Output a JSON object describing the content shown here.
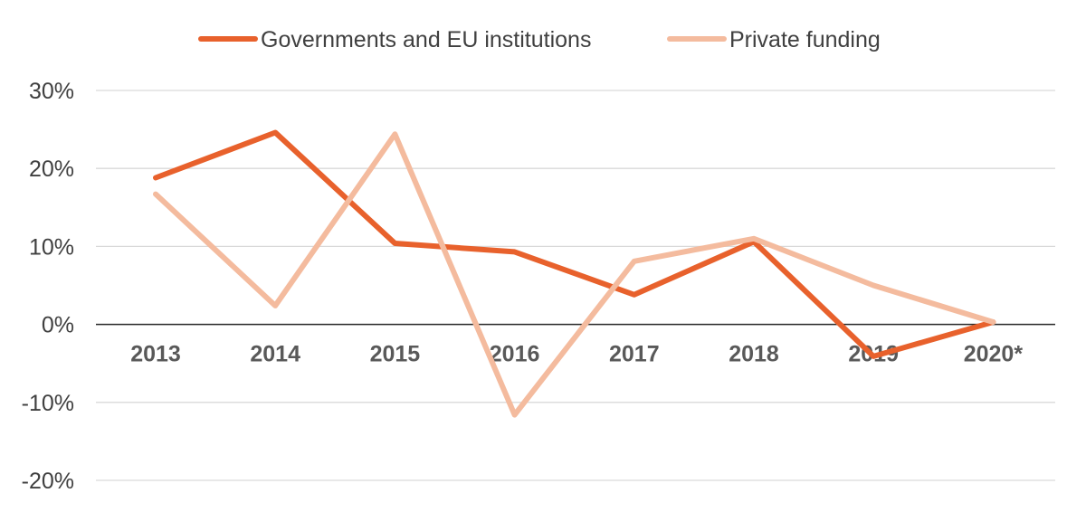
{
  "chart_data": {
    "type": "line",
    "title": "",
    "xlabel": "",
    "ylabel": "",
    "categories": [
      "2013",
      "2014",
      "2015",
      "2016",
      "2017",
      "2018",
      "2019",
      "2020*"
    ],
    "ylim": [
      -20,
      30
    ],
    "yticks": [
      30,
      20,
      10,
      0,
      -10,
      -20
    ],
    "ytick_labels": [
      "30%",
      "20%",
      "10%",
      "0%",
      "-10%",
      "-20%"
    ],
    "grid": true,
    "legend_position": "top-center",
    "series": [
      {
        "name": "Governments and EU institutions",
        "color": "#E8612C",
        "values": [
          18.8,
          24.6,
          10.4,
          9.3,
          3.8,
          10.6,
          -4.1,
          0.3
        ]
      },
      {
        "name": "Private funding",
        "color": "#F4BB9E",
        "values": [
          16.7,
          2.4,
          24.4,
          -11.6,
          8.1,
          11.0,
          5.0,
          0.3
        ]
      }
    ]
  }
}
